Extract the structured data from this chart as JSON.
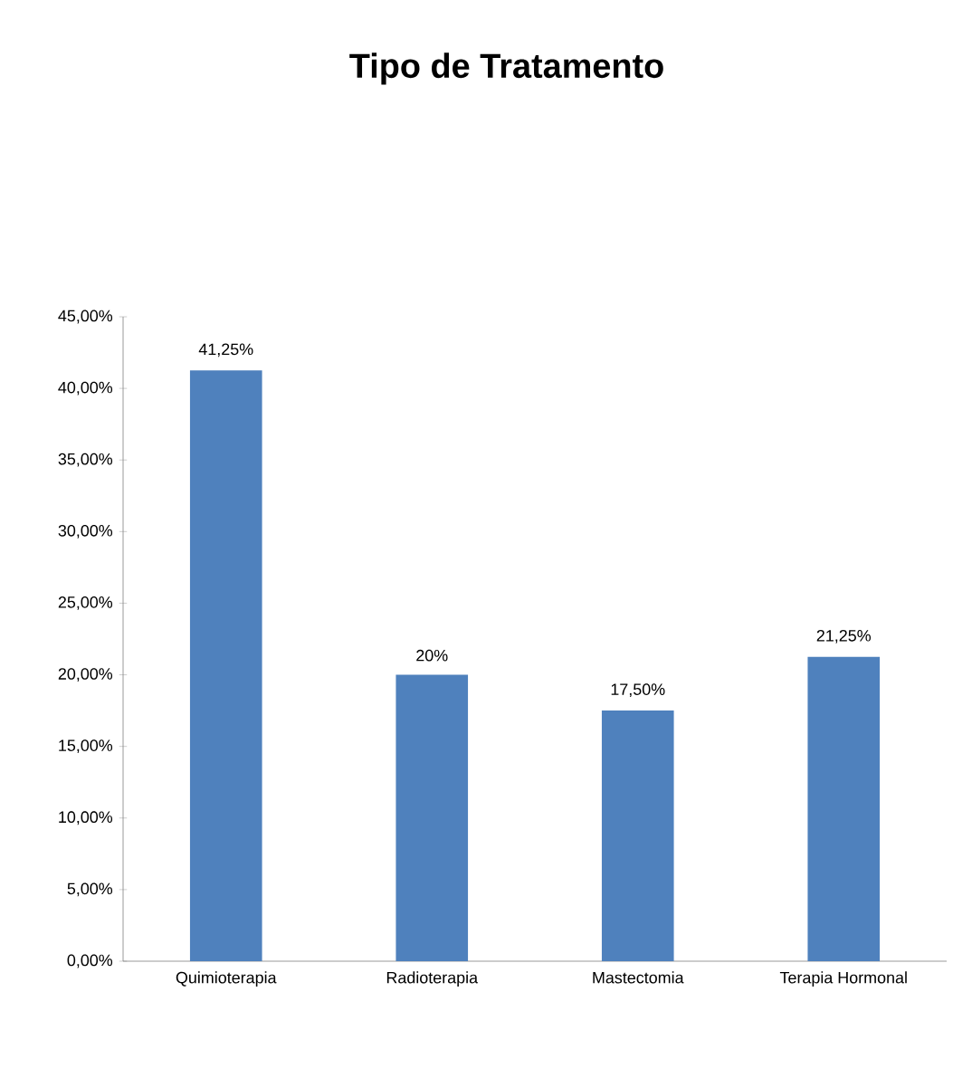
{
  "chart_data": {
    "type": "bar",
    "title": "Tipo de Tratamento",
    "categories": [
      "Quimioterapia",
      "Radioterapia",
      "Mastectomia",
      "Terapia Hormonal"
    ],
    "values": [
      41.25,
      20,
      17.5,
      21.25
    ],
    "value_labels": [
      "41,25%",
      "20%",
      "17,50%",
      "21,25%"
    ],
    "color": "#4f81bd",
    "ylim": [
      0,
      45
    ],
    "yticks": [
      {
        "value": 0,
        "label": "0,00%"
      },
      {
        "value": 5,
        "label": "5,00%"
      },
      {
        "value": 10,
        "label": "10,00%"
      },
      {
        "value": 15,
        "label": "15,00%"
      },
      {
        "value": 20,
        "label": "20,00%"
      },
      {
        "value": 25,
        "label": "25,00%"
      },
      {
        "value": 30,
        "label": "30,00%"
      },
      {
        "value": 35,
        "label": "35,00%"
      },
      {
        "value": 40,
        "label": "40,00%"
      },
      {
        "value": 45,
        "label": "45,00%"
      }
    ]
  }
}
